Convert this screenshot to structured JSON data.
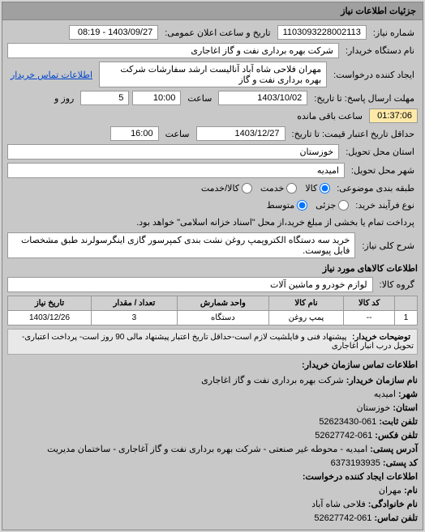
{
  "header": {
    "title": "جزئیات اطلاعات نیاز"
  },
  "need": {
    "number_label": "شماره نیاز:",
    "number": "1103093228002113",
    "announce_label": "تاریخ و ساعت اعلان عمومی:",
    "announce": "1403/09/27 - 08:19",
    "buyer_org_label": "نام دستگاه خریدار:",
    "buyer_org": "شرکت بهره برداری نفت و گاز اغاجاری",
    "requester_label": "ایجاد کننده درخواست:",
    "requester": "مهران فلاحی شاه آباد آنالیست ارشد سفارشات شرکت بهره برداری نفت و گاز",
    "buyer_contact_link": "اطلاعات تماس خریدار",
    "deadline_label": "مهلت ارسال پاسخ: تا تاریخ:",
    "deadline_date": "1403/10/02",
    "deadline_time_label": "ساعت",
    "deadline_time": "10:00",
    "days_label": "روز و",
    "days_remaining": "5",
    "remaining_label": "ساعت باقی مانده",
    "remaining_time": "01:37:06",
    "price_validity_label": "حداقل تاریخ اعتبار قیمت: تا تاریخ:",
    "price_validity_date": "1403/12/27",
    "price_validity_time": "16:00",
    "province_label": "استان محل تحویل:",
    "province": "خوزستان",
    "city_label": "شهر محل تحویل:",
    "city": "امیدیه",
    "subject_type_label": "طبقه بندی موضوعی:",
    "subject_options": [
      "کالا",
      "خدمت",
      "کالا/خدمت",
      "جزئی",
      "متوسط"
    ],
    "process_label": "نوع فرآیند خرید:",
    "process_note": "پرداخت تمام یا بخشی از مبلغ خرید،از محل \"اسناد خزانه اسلامی\" خواهد بود.",
    "key_label": "شرح کلی نیاز:",
    "key_desc": "خرید سه دستگاه الکتروپمپ روغن نشت بندی کمپرسور گازی اینگرسولرند طبق مشخصات فایل پیوست."
  },
  "goods": {
    "section_title": "اطلاعات کالاهای مورد نیاز",
    "group_label": "گروه کالا:",
    "group": "لوازم خودرو و ماشین آلات",
    "columns": [
      "کد کالا",
      "نام کالا",
      "واحد شمارش",
      "تعداد / مقدار",
      "تاریخ نیاز"
    ],
    "rows": [
      [
        "--",
        "پمپ روغن",
        "دستگاه",
        "3",
        "1403/12/26"
      ]
    ],
    "row_index": "1",
    "buyer_note_label": "توضیحات خریدار:",
    "buyer_note": "پیشنهاد فنی و فایلشیت لازم است-حداقل تاریخ اعتبار پیشنهاد مالی 90 روز است- پرداخت اعتباری- تحویل درب انبار اغاجاری"
  },
  "contact": {
    "section_title": "اطلاعات تماس سازمان خریدار:",
    "org_label": "نام سازمان خریدار:",
    "org": "شرکت بهره برداری نفت و گاز اغاجاری",
    "city_label": "شهر:",
    "city": "امیدیه",
    "province_label": "استان:",
    "province": "خوزستان",
    "phone_label": "تلفن ثابت:",
    "phone": "061-52623430",
    "fax_label": "تلفن فکس:",
    "fax": "061-52627742",
    "address_label": "آدرس پستی:",
    "address": "امیدیه - محوطه غیر صنعتی - شرکت بهره برداری نفت و گاز آغاجاری - ساختمان مدیریت",
    "postcode_label": "کد پستی:",
    "postcode": "6373193935",
    "creator_section": "اطلاعات ایجاد کننده درخواست:",
    "name_label": "نام:",
    "name": "مهران",
    "family_label": "نام خانوادگی:",
    "family": "فلاحی شاه آباد",
    "contact_phone_label": "تلفن تماس:",
    "contact_phone": "061-52627742"
  }
}
